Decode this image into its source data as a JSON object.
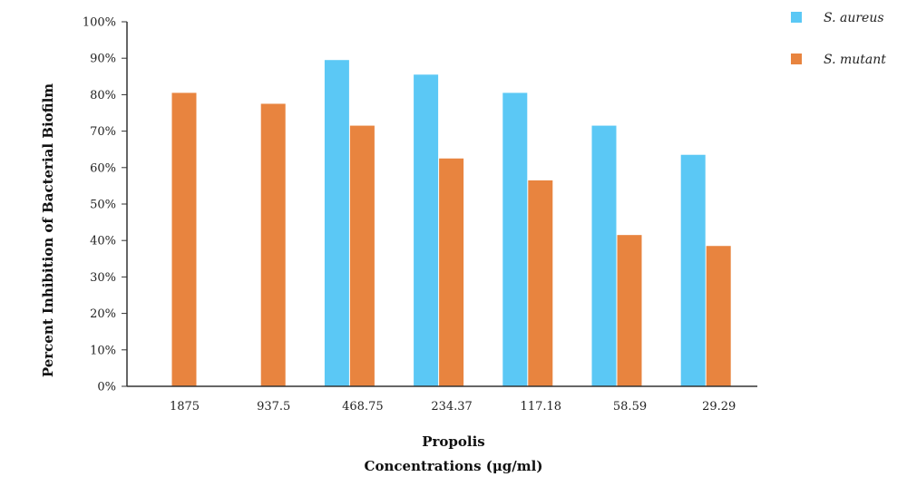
{
  "chart_data": {
    "type": "bar",
    "categories": [
      "1875",
      "937.5",
      "468.75",
      "234.37",
      "117.18",
      "58.59",
      "29.29"
    ],
    "series": [
      {
        "name": "S. aureus",
        "color": "#5BC8F5",
        "values": [
          null,
          null,
          89.5,
          85.5,
          80.5,
          71.5,
          63.5
        ]
      },
      {
        "name": "S. mutant",
        "color": "#E8843F",
        "values": [
          80.5,
          77.5,
          71.5,
          62.5,
          56.5,
          41.5,
          38.5
        ]
      }
    ],
    "xlabel_line1": "Propolis",
    "xlabel_line2": "Concentrations (μg/ml)",
    "ylabel": "Percent Inhibition of Bacterial Biofilm",
    "ylim": [
      0,
      100
    ],
    "yticks": [
      "0%",
      "10%",
      "20%",
      "30%",
      "40%",
      "50%",
      "60%",
      "70%",
      "80%",
      "90%",
      "100%"
    ],
    "grid": false,
    "legend_position": "top-right"
  }
}
